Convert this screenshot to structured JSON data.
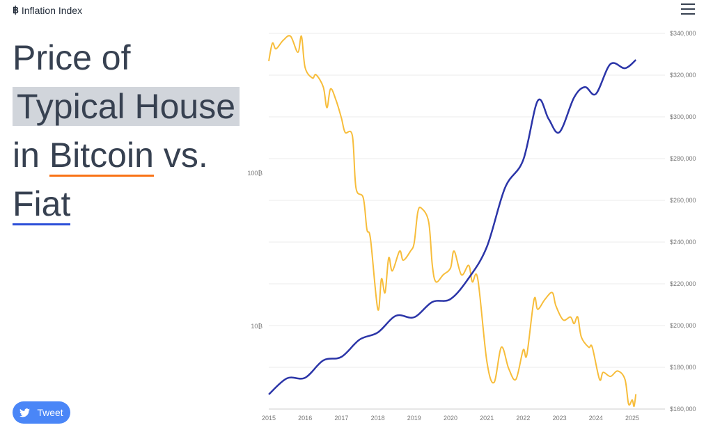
{
  "header": {
    "logo": "฿",
    "brand": "Inflation Index",
    "menu_icon": "hamburger-icon"
  },
  "title": {
    "line1": "Price of",
    "line2": "Typical House",
    "line3_a": "in",
    "line3_b": "Bitcoin",
    "line3_c": "vs.",
    "line4": "Fiat"
  },
  "tweet": {
    "label": "Tweet",
    "icon": "twitter-bird-icon"
  },
  "colors": {
    "bitcoin_line": "#f7bd3b",
    "fiat_line": "#2b35a8",
    "underline_bitcoin": "#f97316",
    "underline_fiat": "#2b4ed8",
    "button": "#4a86f7"
  },
  "chart_data": {
    "type": "line",
    "x_ticks": [
      "2015",
      "2016",
      "2017",
      "2018",
      "2019",
      "2020",
      "2021",
      "2022",
      "2023",
      "2024",
      "2025"
    ],
    "xlim": [
      2015,
      2026.3
    ],
    "y_left": {
      "scale": "log",
      "ticks": [
        {
          "value": 10,
          "label": "10₿"
        },
        {
          "value": 100,
          "label": "100₿"
        }
      ],
      "lim": [
        2.7,
        860
      ]
    },
    "y_right": {
      "scale": "linear",
      "ticks": [
        "$160,000",
        "$180,000",
        "$200,000",
        "$220,000",
        "$240,000",
        "$260,000",
        "$280,000",
        "$300,000",
        "$320,000",
        "$340,000"
      ],
      "lim": [
        160000,
        340000
      ]
    },
    "grid": true,
    "series": [
      {
        "axis": "left",
        "color": "#f7bd3b",
        "points": [
          [
            2015,
            540
          ],
          [
            2015.1,
            707
          ],
          [
            2015.2,
            650
          ],
          [
            2015.4,
            740
          ],
          [
            2015.6,
            785
          ],
          [
            2015.8,
            617
          ],
          [
            2015.9,
            785
          ],
          [
            2016,
            490
          ],
          [
            2016.2,
            419
          ],
          [
            2016.3,
            440
          ],
          [
            2016.5,
            366
          ],
          [
            2016.6,
            268
          ],
          [
            2016.7,
            356
          ],
          [
            2016.85,
            300
          ],
          [
            2017,
            229
          ],
          [
            2017.1,
            185
          ],
          [
            2017.3,
            176
          ],
          [
            2017.4,
            80
          ],
          [
            2017.6,
            69
          ],
          [
            2017.7,
            43
          ],
          [
            2017.8,
            37
          ],
          [
            2018,
            12.9
          ],
          [
            2018.1,
            20.4
          ],
          [
            2018.2,
            16.6
          ],
          [
            2018.3,
            28
          ],
          [
            2018.4,
            23
          ],
          [
            2018.6,
            31
          ],
          [
            2018.7,
            27
          ],
          [
            2018.9,
            31
          ],
          [
            2019,
            35
          ],
          [
            2019.1,
            55.6
          ],
          [
            2019.2,
            59
          ],
          [
            2019.4,
            48
          ],
          [
            2019.5,
            25
          ],
          [
            2019.6,
            19.5
          ],
          [
            2019.8,
            21.7
          ],
          [
            2020,
            24
          ],
          [
            2020.1,
            31
          ],
          [
            2020.3,
            21.7
          ],
          [
            2020.5,
            25
          ],
          [
            2020.6,
            19.5
          ],
          [
            2020.75,
            20.4
          ],
          [
            2021,
            5.9
          ],
          [
            2021.2,
            4.3
          ],
          [
            2021.4,
            7.3
          ],
          [
            2021.6,
            5.3
          ],
          [
            2021.8,
            4.5
          ],
          [
            2022,
            7.0
          ],
          [
            2022.1,
            6.5
          ],
          [
            2022.3,
            15
          ],
          [
            2022.4,
            12.9
          ],
          [
            2022.6,
            15
          ],
          [
            2022.8,
            16.6
          ],
          [
            2022.9,
            13.6
          ],
          [
            2023.1,
            11
          ],
          [
            2023.3,
            11.5
          ],
          [
            2023.4,
            10.4
          ],
          [
            2023.5,
            11.5
          ],
          [
            2023.6,
            8.5
          ],
          [
            2023.8,
            7.3
          ],
          [
            2023.9,
            7.3
          ],
          [
            2024.1,
            4.5
          ],
          [
            2024.2,
            5
          ],
          [
            2024.4,
            4.7
          ],
          [
            2024.6,
            5.1
          ],
          [
            2024.8,
            4.5
          ],
          [
            2024.9,
            3.1
          ],
          [
            2025,
            3.3
          ],
          [
            2025.05,
            3.0
          ],
          [
            2025.1,
            3.6
          ]
        ]
      },
      {
        "axis": "right",
        "color": "#2b35a8",
        "points": [
          [
            2015,
            167000
          ],
          [
            2015.5,
            174700
          ],
          [
            2016,
            175000
          ],
          [
            2016.5,
            183300
          ],
          [
            2017,
            185000
          ],
          [
            2017.5,
            193300
          ],
          [
            2018,
            196700
          ],
          [
            2018.5,
            204700
          ],
          [
            2019,
            204000
          ],
          [
            2019.5,
            211300
          ],
          [
            2020,
            212700
          ],
          [
            2020.5,
            222700
          ],
          [
            2021,
            237700
          ],
          [
            2021.5,
            266000
          ],
          [
            2022,
            279300
          ],
          [
            2022.4,
            307700
          ],
          [
            2022.7,
            299000
          ],
          [
            2023,
            292700
          ],
          [
            2023.4,
            309300
          ],
          [
            2023.7,
            314300
          ],
          [
            2024,
            311000
          ],
          [
            2024.4,
            325300
          ],
          [
            2024.8,
            323300
          ],
          [
            2025.1,
            327300
          ]
        ]
      }
    ]
  }
}
